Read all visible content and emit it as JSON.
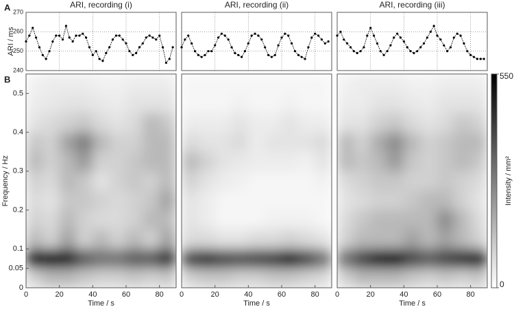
{
  "panel_labels": [
    "A",
    "B"
  ],
  "colorbar": {
    "label": "Intensity / mm²",
    "lim": [
      0,
      550
    ],
    "ticks": [
      0,
      550
    ]
  },
  "chart_data": [
    {
      "type": "line",
      "title": "ARI, recording (i)",
      "ylabel": "ARI / ms",
      "color": "#000000",
      "x": [
        0,
        2,
        4,
        6,
        8,
        10,
        12,
        14,
        16,
        18,
        20,
        22,
        24,
        26,
        28,
        30,
        32,
        34,
        36,
        38,
        40,
        42,
        44,
        46,
        48,
        50,
        52,
        54,
        56,
        58,
        60,
        62,
        64,
        66,
        68,
        70,
        72,
        74,
        76,
        78,
        80,
        82,
        84,
        86,
        88
      ],
      "values": [
        255,
        258,
        262,
        257,
        252,
        248,
        246,
        250,
        255,
        258,
        258,
        256,
        263,
        257,
        255,
        258,
        258,
        259,
        257,
        252,
        248,
        250,
        246,
        245,
        249,
        252,
        256,
        258,
        258,
        256,
        254,
        250,
        248,
        249,
        252,
        254,
        257,
        258,
        257,
        256,
        258,
        252,
        244,
        246,
        252
      ],
      "xlim": [
        0,
        90
      ],
      "ylim": [
        240,
        270
      ],
      "xticks": [
        0,
        20,
        40,
        60,
        80
      ],
      "yticks": [
        240,
        250,
        260,
        270
      ],
      "grid": true
    },
    {
      "type": "line",
      "title": "ARI, recording (ii)",
      "color": "#000000",
      "x": [
        0,
        2,
        4,
        6,
        8,
        10,
        12,
        14,
        16,
        18,
        20,
        22,
        24,
        26,
        28,
        30,
        32,
        34,
        36,
        38,
        40,
        42,
        44,
        46,
        48,
        50,
        52,
        54,
        56,
        58,
        60,
        62,
        64,
        66,
        68,
        70,
        72,
        74,
        76,
        78,
        80,
        82,
        84,
        86,
        88
      ],
      "values": [
        252,
        256,
        258,
        254,
        250,
        248,
        247,
        248,
        250,
        250,
        253,
        257,
        259,
        258,
        256,
        252,
        249,
        248,
        247,
        250,
        254,
        258,
        259,
        258,
        256,
        252,
        248,
        247,
        248,
        253,
        257,
        259,
        258,
        254,
        250,
        248,
        247,
        246,
        252,
        257,
        259,
        258,
        256,
        254,
        255
      ],
      "xlim": [
        0,
        90
      ],
      "ylim": [
        240,
        270
      ],
      "xticks": [
        0,
        20,
        40,
        60,
        80
      ],
      "yticks": [
        240,
        250,
        260,
        270
      ],
      "grid": true
    },
    {
      "type": "line",
      "title": "ARI, recording (iii)",
      "color": "#000000",
      "x": [
        0,
        2,
        4,
        6,
        8,
        10,
        12,
        14,
        16,
        18,
        20,
        22,
        24,
        26,
        28,
        30,
        32,
        34,
        36,
        38,
        40,
        42,
        44,
        46,
        48,
        50,
        52,
        54,
        56,
        58,
        60,
        62,
        64,
        66,
        68,
        70,
        72,
        74,
        76,
        78,
        80,
        82,
        84,
        86,
        88
      ],
      "values": [
        258,
        260,
        256,
        254,
        252,
        250,
        249,
        250,
        252,
        258,
        262,
        258,
        254,
        250,
        248,
        250,
        253,
        257,
        259,
        257,
        255,
        252,
        250,
        249,
        250,
        252,
        254,
        257,
        260,
        263,
        258,
        256,
        253,
        250,
        252,
        257,
        259,
        258,
        254,
        250,
        248,
        247,
        246,
        246,
        246
      ],
      "xlim": [
        0,
        90
      ],
      "ylim": [
        240,
        270
      ],
      "xticks": [
        0,
        20,
        40,
        60,
        80
      ],
      "yticks": [
        240,
        250,
        260,
        270
      ],
      "grid": true
    },
    {
      "type": "heatmap",
      "xlabel": "Time / s",
      "ylabel": "Frequency / Hz",
      "x": [
        5,
        15,
        25,
        35,
        45,
        55,
        65,
        75,
        85
      ],
      "y": [
        0.025,
        0.075,
        0.125,
        0.175,
        0.225,
        0.275,
        0.325,
        0.375,
        0.425,
        0.475,
        0.525
      ],
      "z": [
        [
          100,
          150,
          150,
          120,
          100,
          100,
          120,
          100,
          120
        ],
        [
          500,
          550,
          500,
          350,
          300,
          300,
          350,
          350,
          450
        ],
        [
          150,
          100,
          200,
          100,
          150,
          100,
          150,
          100,
          200
        ],
        [
          100,
          80,
          150,
          100,
          80,
          80,
          100,
          150,
          150
        ],
        [
          80,
          60,
          120,
          120,
          100,
          80,
          100,
          120,
          200
        ],
        [
          100,
          80,
          150,
          120,
          60,
          100,
          120,
          100,
          150
        ],
        [
          150,
          100,
          150,
          220,
          100,
          100,
          120,
          150,
          150
        ],
        [
          120,
          100,
          200,
          280,
          150,
          100,
          100,
          150,
          150
        ],
        [
          60,
          80,
          100,
          120,
          80,
          60,
          80,
          150,
          120
        ],
        [
          40,
          50,
          60,
          60,
          50,
          40,
          60,
          60,
          60
        ],
        [
          30,
          40,
          40,
          40,
          30,
          30,
          40,
          40,
          40
        ]
      ],
      "xlim": [
        0,
        90
      ],
      "ylim": [
        0,
        0.55
      ],
      "xticks": [
        0,
        20,
        40,
        60,
        80
      ],
      "yticks": [
        0,
        0.05,
        0.1,
        0.2,
        0.3,
        0.4,
        0.5
      ]
    },
    {
      "type": "heatmap",
      "xlabel": "Time / s",
      "x": [
        5,
        15,
        25,
        35,
        45,
        55,
        65,
        75,
        85
      ],
      "y": [
        0.025,
        0.075,
        0.125,
        0.175,
        0.225,
        0.275,
        0.325,
        0.375,
        0.425,
        0.475,
        0.525
      ],
      "z": [
        [
          100,
          120,
          120,
          100,
          100,
          120,
          120,
          100,
          80
        ],
        [
          400,
          450,
          400,
          380,
          400,
          420,
          500,
          400,
          300
        ],
        [
          80,
          80,
          60,
          60,
          80,
          80,
          100,
          80,
          60
        ],
        [
          60,
          40,
          20,
          20,
          20,
          30,
          30,
          30,
          20
        ],
        [
          60,
          40,
          20,
          20,
          20,
          20,
          20,
          20,
          20
        ],
        [
          100,
          60,
          40,
          30,
          20,
          20,
          20,
          20,
          30
        ],
        [
          150,
          100,
          60,
          50,
          40,
          40,
          40,
          30,
          60
        ],
        [
          80,
          60,
          60,
          80,
          40,
          60,
          60,
          60,
          80
        ],
        [
          40,
          40,
          40,
          60,
          40,
          40,
          60,
          40,
          40
        ],
        [
          20,
          20,
          20,
          30,
          20,
          20,
          30,
          20,
          20
        ],
        [
          20,
          20,
          20,
          20,
          20,
          20,
          20,
          20,
          20
        ]
      ],
      "xlim": [
        0,
        90
      ],
      "ylim": [
        0,
        0.55
      ],
      "xticks": [
        0,
        20,
        40,
        60,
        80
      ]
    },
    {
      "type": "heatmap",
      "xlabel": "Time / s",
      "x": [
        5,
        15,
        25,
        35,
        45,
        55,
        65,
        75,
        85
      ],
      "y": [
        0.025,
        0.075,
        0.125,
        0.175,
        0.225,
        0.275,
        0.325,
        0.375,
        0.425,
        0.475,
        0.525
      ],
      "z": [
        [
          100,
          150,
          150,
          150,
          120,
          100,
          120,
          100,
          120
        ],
        [
          300,
          400,
          500,
          550,
          400,
          350,
          400,
          450,
          500
        ],
        [
          100,
          150,
          150,
          150,
          200,
          150,
          200,
          150,
          100
        ],
        [
          80,
          120,
          150,
          150,
          150,
          150,
          250,
          150,
          80
        ],
        [
          60,
          80,
          100,
          100,
          120,
          150,
          150,
          100,
          60
        ],
        [
          80,
          100,
          120,
          120,
          100,
          100,
          120,
          100,
          80
        ],
        [
          150,
          120,
          150,
          220,
          120,
          100,
          120,
          150,
          120
        ],
        [
          150,
          100,
          180,
          250,
          150,
          100,
          120,
          150,
          150
        ],
        [
          60,
          60,
          100,
          120,
          80,
          60,
          80,
          120,
          100
        ],
        [
          40,
          40,
          60,
          60,
          50,
          40,
          60,
          60,
          60
        ],
        [
          30,
          40,
          40,
          40,
          30,
          30,
          40,
          40,
          40
        ]
      ],
      "xlim": [
        0,
        90
      ],
      "ylim": [
        0,
        0.55
      ],
      "xticks": [
        0,
        20,
        40,
        60,
        80
      ]
    }
  ]
}
